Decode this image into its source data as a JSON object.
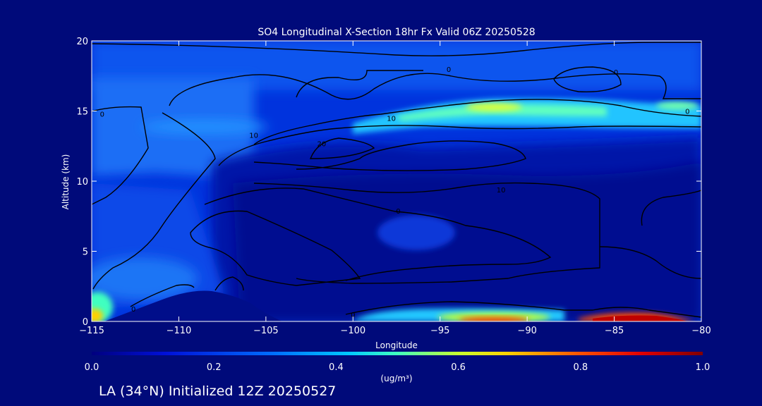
{
  "chart_data": {
    "type": "heatmap",
    "title": "SO4 Longitudinal X-Section 18hr  Fx Valid 06Z 20250528",
    "xlabel": "Longitude",
    "ylabel": "Altitude (km)",
    "xlim": [
      -115,
      -80
    ],
    "ylim": [
      0,
      20
    ],
    "x_ticks": [
      -115,
      -110,
      -105,
      -100,
      -95,
      -90,
      -85,
      -80
    ],
    "y_ticks": [
      0,
      5,
      10,
      15,
      20
    ],
    "colorbar": {
      "label": "(ug/m³)",
      "range": [
        0.0,
        1.0
      ],
      "ticks": [
        "0.0",
        "0.2",
        "0.4",
        "0.6",
        "0.8",
        "1.0"
      ]
    },
    "contour_labels": [
      {
        "text": "0",
        "x": -94.5,
        "y": 18.0
      },
      {
        "text": "0",
        "x": -84.9,
        "y": 17.8
      },
      {
        "text": "0",
        "x": -80.8,
        "y": 15.0
      },
      {
        "text": "0",
        "x": -114.4,
        "y": 14.8
      },
      {
        "text": "10",
        "x": -97.8,
        "y": 14.5
      },
      {
        "text": "10",
        "x": -105.7,
        "y": 13.3
      },
      {
        "text": "20",
        "x": -101.8,
        "y": 12.7
      },
      {
        "text": "10",
        "x": -91.5,
        "y": 9.4
      },
      {
        "text": "0",
        "x": -97.4,
        "y": 7.9
      },
      {
        "text": "0",
        "x": -112.6,
        "y": 0.9
      },
      {
        "text": "0",
        "x": -100.0,
        "y": 0.5
      }
    ],
    "concentration_features": [
      {
        "region": "upper band",
        "x_range": [
          -98,
          -80
        ],
        "y_range": [
          14,
          16
        ],
        "value": 0.45
      },
      {
        "region": "surface east",
        "x_range": [
          -100,
          -87
        ],
        "y_range": [
          0,
          0.6
        ],
        "value": 0.85
      },
      {
        "region": "surface far east",
        "x_range": [
          -87,
          -81
        ],
        "y_range": [
          0,
          0.4
        ],
        "value": 0.95
      },
      {
        "region": "surface west",
        "x_range": [
          -115,
          -113.5
        ],
        "y_range": [
          0,
          1.5
        ],
        "value": 0.6
      }
    ]
  },
  "footer": "LA (34°N) Initialized 12Z 20250527",
  "colors": {
    "background": "#000a7a",
    "terrain": "#000e8a",
    "contours": "#000000",
    "text": "#ffffff"
  }
}
